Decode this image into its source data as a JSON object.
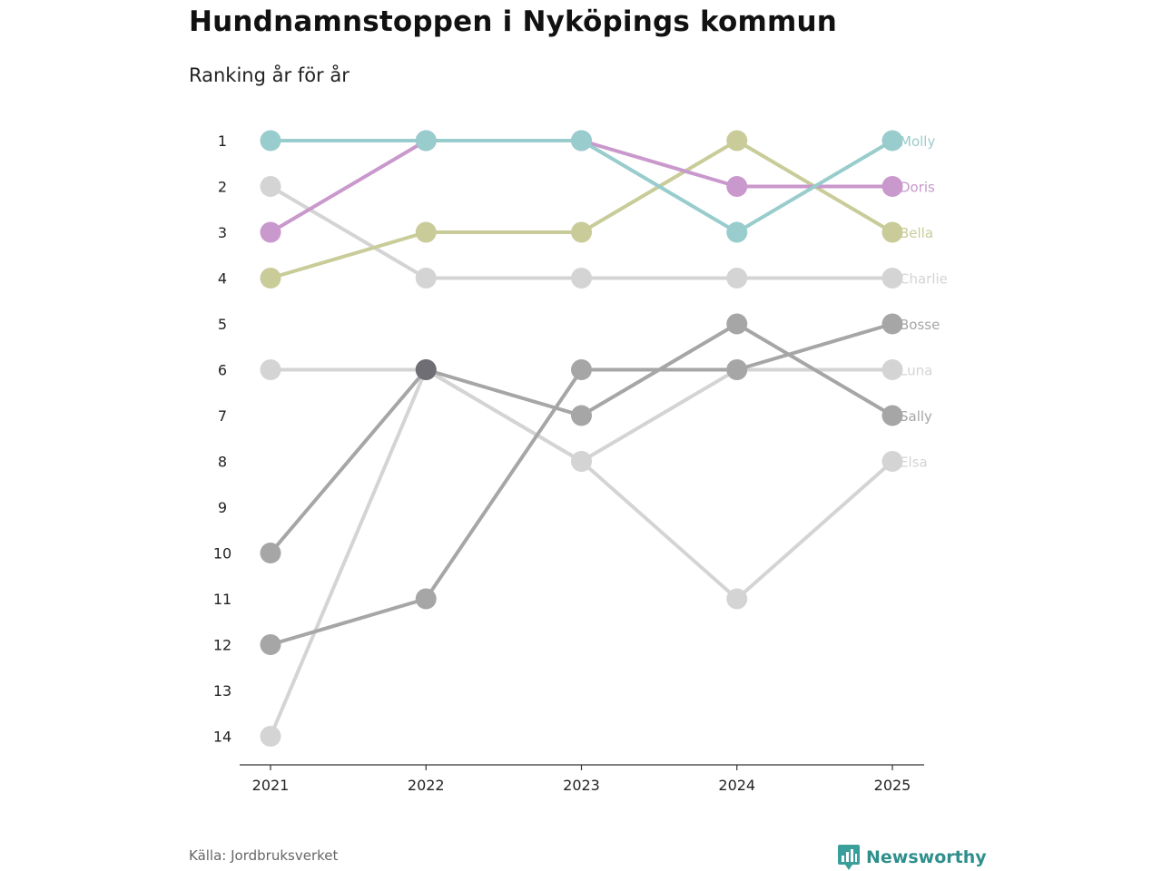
{
  "title": "Hundnamnstoppen i Nyköpings kommun",
  "subtitle": "Ranking år för år",
  "source": "Källa: Jordbruksverket",
  "brand": "Newsworthy",
  "chart_data": {
    "type": "bump",
    "x": [
      "2021",
      "2022",
      "2023",
      "2024",
      "2025"
    ],
    "y_ticks": [
      1,
      2,
      3,
      4,
      5,
      6,
      7,
      8,
      9,
      10,
      11,
      12,
      13,
      14
    ],
    "ylim": [
      1,
      14
    ],
    "y_reversed": true,
    "series": [
      {
        "name": "Elsa",
        "color": "#d4d4d4",
        "values": [
          14,
          6,
          8,
          11,
          8
        ]
      },
      {
        "name": "Luna",
        "color": "#d4d4d4",
        "values": [
          6,
          6,
          8,
          6,
          6
        ]
      },
      {
        "name": "Charlie",
        "color": "#d4d4d4",
        "values": [
          2,
          4,
          4,
          4,
          4
        ]
      },
      {
        "name": "Sally",
        "color": "#a6a6a6",
        "values": [
          10,
          6,
          7,
          5,
          7
        ]
      },
      {
        "name": "Bosse",
        "color": "#a6a6a6",
        "values": [
          12,
          11,
          6,
          6,
          5
        ]
      },
      {
        "name": "Bella",
        "color": "#c9cc99",
        "values": [
          4,
          3,
          3,
          1,
          3
        ]
      },
      {
        "name": "Doris",
        "color": "#c998cc",
        "values": [
          3,
          1,
          1,
          2,
          2
        ]
      },
      {
        "name": "Molly",
        "color": "#99cccc",
        "values": [
          1,
          1,
          1,
          3,
          1
        ]
      }
    ]
  }
}
